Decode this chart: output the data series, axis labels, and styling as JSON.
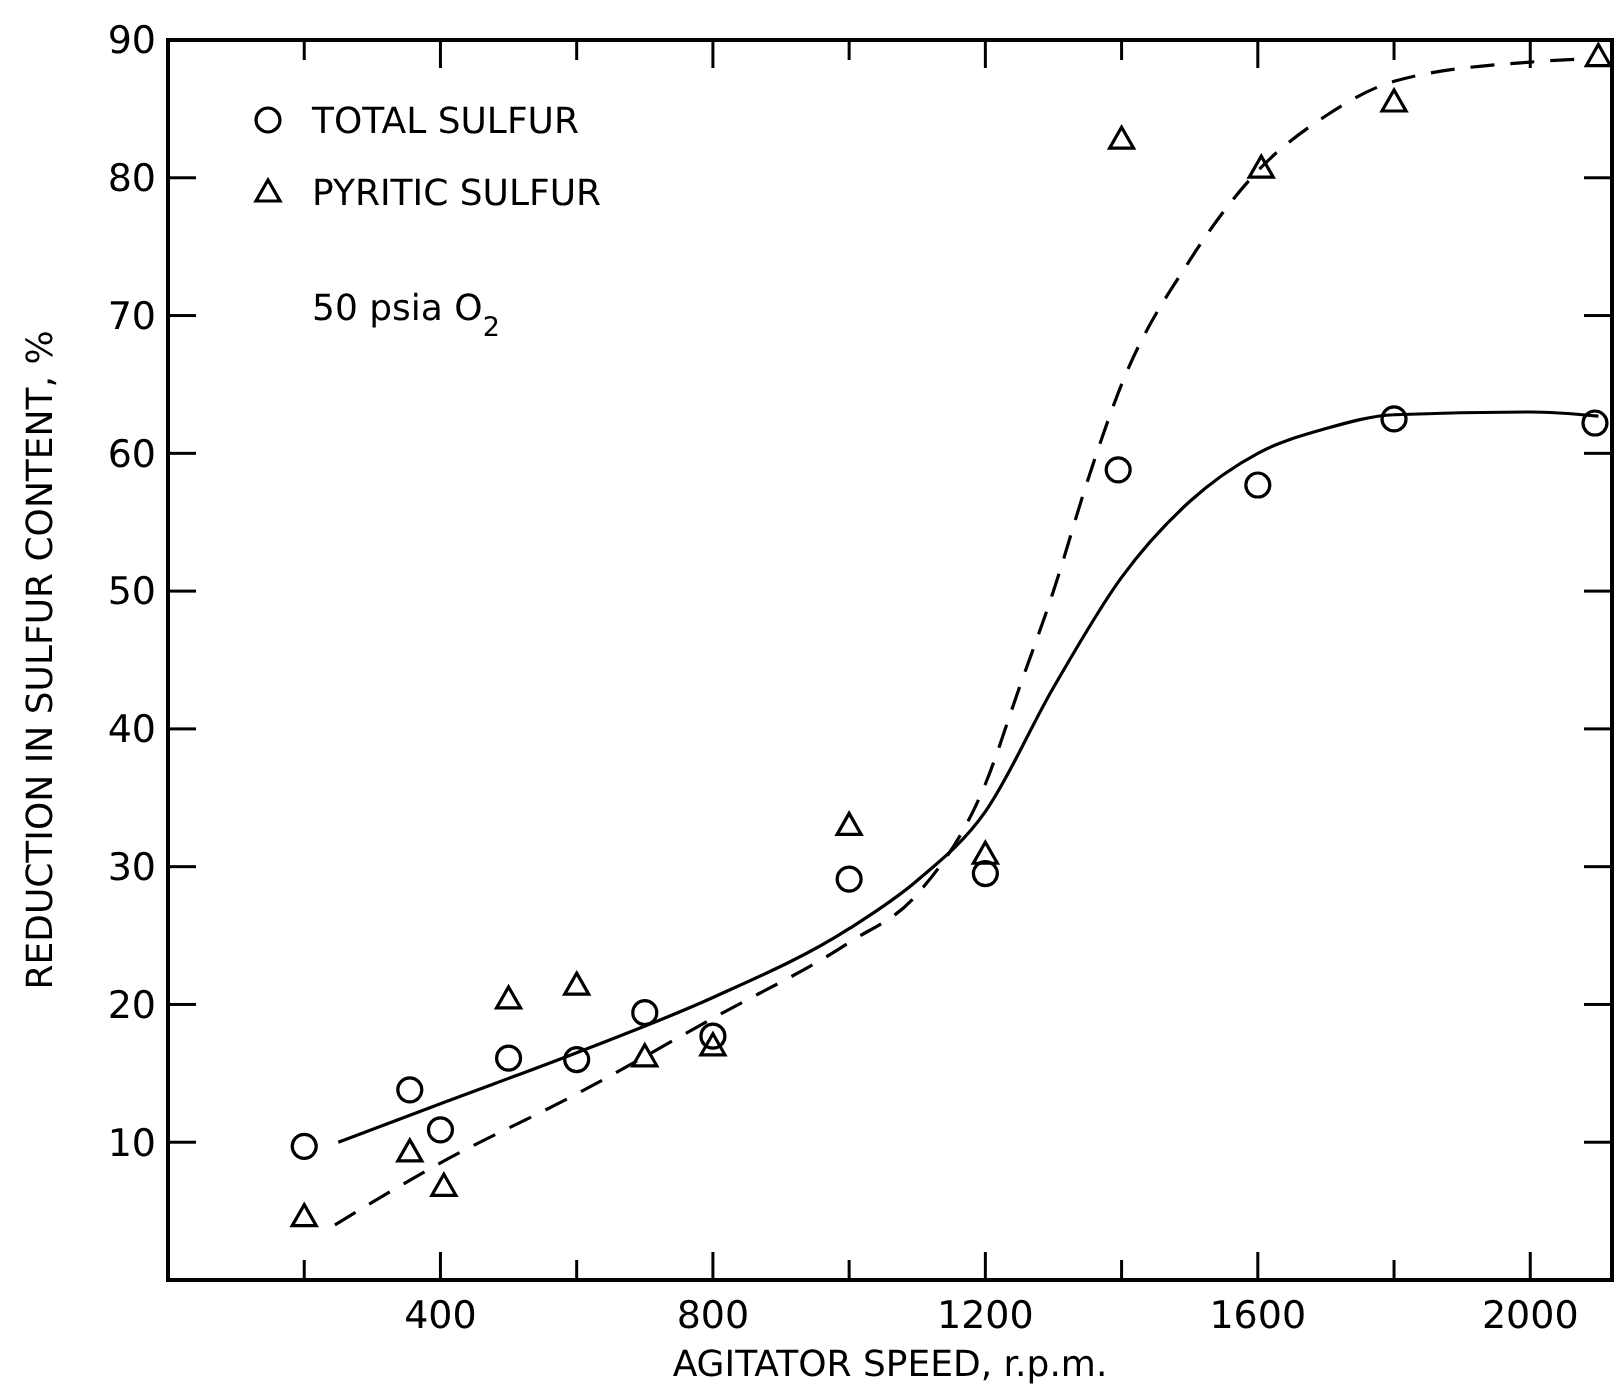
{
  "chart_data": {
    "type": "scatter",
    "xlabel": "AGITATOR SPEED, r.p.m.",
    "ylabel": "REDUCTION IN SULFUR CONTENT, %",
    "xlim": [
      0,
      2120
    ],
    "ylim": [
      0,
      90
    ],
    "xticks": [
      {
        "value": 200,
        "label": null
      },
      400,
      {
        "value": 600,
        "label": null
      },
      800,
      {
        "value": 1000,
        "label": null
      },
      1200,
      {
        "value": 1400,
        "label": null
      },
      1600,
      {
        "value": 1800,
        "label": null
      },
      2000
    ],
    "yticks": [
      10,
      20,
      30,
      40,
      50,
      60,
      70,
      80,
      90
    ],
    "grid": false,
    "legend": "top left",
    "annotations": [
      "50 psia O$_{2}$"
    ],
    "series": [
      {
        "name": "TOTAL SULFUR",
        "marker": "circle",
        "color": "#000000",
        "x": [
          200,
          355,
          400,
          500,
          600,
          700,
          800,
          1000,
          1200,
          1395,
          1600,
          1800,
          2095
        ],
        "values": [
          9.7,
          13.8,
          10.9,
          16.1,
          16,
          19.4,
          17.7,
          29.1,
          29.5,
          58.8,
          57.7,
          62.5,
          62.2
        ]
      },
      {
        "name": "PYRITIC SULFUR",
        "marker": "triangle",
        "color": "#000000",
        "x": [
          200,
          355,
          405,
          500,
          600,
          700,
          800,
          1000,
          1200,
          1400,
          1605,
          1800,
          2100
        ],
        "values": [
          4.6,
          9.3,
          6.8,
          20.4,
          21.4,
          16.2,
          17,
          33,
          30.9,
          82.8,
          80.7,
          85.5,
          88.8
        ]
      },
      {
        "type": "line",
        "marker": "none",
        "line_style": "solid",
        "color": "#000000",
        "x": [
          250,
          400,
          600,
          800,
          1000,
          1100,
          1200,
          1300,
          1400,
          1500,
          1600,
          1700,
          1800,
          2000,
          2100
        ],
        "values": [
          10,
          12.8,
          16.5,
          20.5,
          25.5,
          29,
          34,
          43,
          51,
          56.5,
          60,
          61.8,
          62.8,
          63,
          62.7
        ]
      },
      {
        "type": "line",
        "marker": "none",
        "line_style": "dashed",
        "color": "#000000",
        "x": [
          245,
          400,
          600,
          800,
          1000,
          1100,
          1200,
          1250,
          1300,
          1350,
          1400,
          1500,
          1600,
          1700,
          1800,
          2000,
          2070
        ],
        "values": [
          4,
          8.5,
          13.5,
          19,
          24.5,
          28,
          36,
          43,
          50,
          58,
          65,
          74,
          80.5,
          84.5,
          87,
          88.4,
          88.6
        ]
      }
    ]
  }
}
